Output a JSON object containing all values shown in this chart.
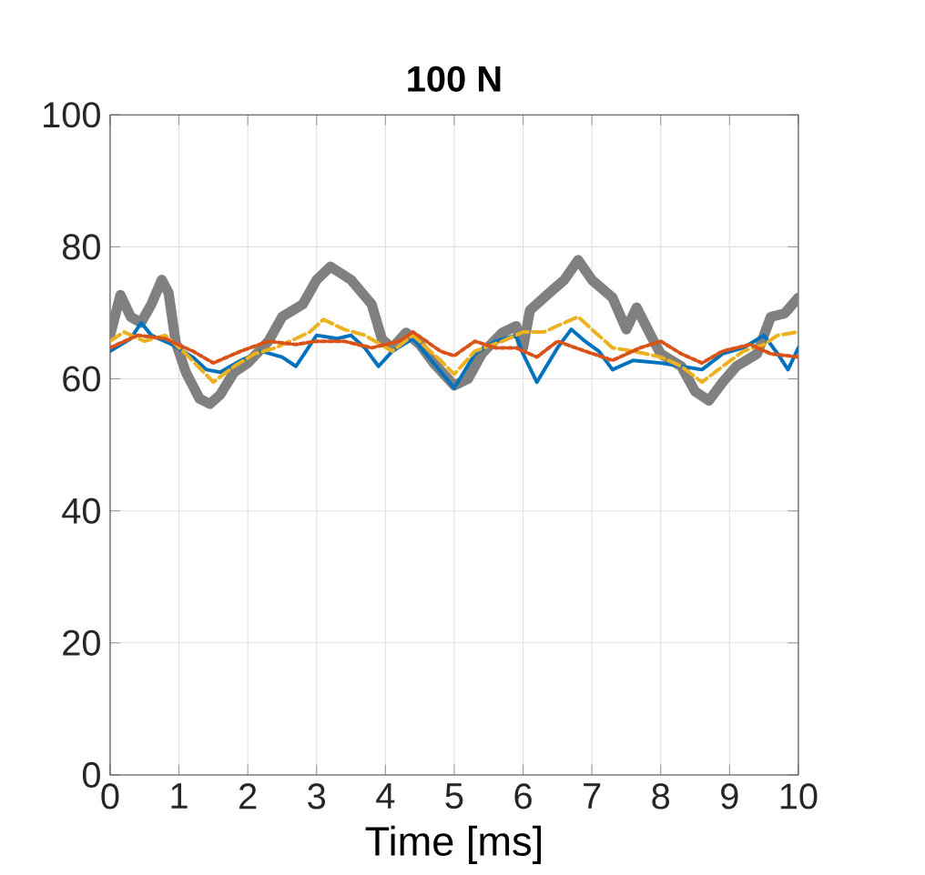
{
  "chart_data": {
    "type": "line",
    "title": "100 N",
    "xlabel": "Time [ms]",
    "xlim": [
      0,
      10
    ],
    "ylim": [
      0,
      100
    ],
    "xticks": [
      0,
      1,
      2,
      3,
      4,
      5,
      6,
      7,
      8,
      9,
      10
    ],
    "yticks": [
      0,
      20,
      40,
      60,
      80,
      100
    ],
    "grid": true,
    "series": [
      {
        "color": "#808080",
        "line_style": "solid",
        "x": [
          0,
          0.15,
          0.3,
          0.45,
          0.6,
          0.75,
          0.85,
          0.95,
          1.1,
          1.3,
          1.45,
          1.6,
          1.8,
          2.0,
          2.3,
          2.5,
          2.8,
          3.0,
          3.2,
          3.5,
          3.8,
          3.95,
          4.1,
          4.3,
          4.5,
          4.7,
          5.0,
          5.2,
          5.4,
          5.7,
          5.9,
          6.0,
          6.1,
          6.4,
          6.6,
          6.8,
          7.0,
          7.3,
          7.5,
          7.65,
          7.9,
          8.0,
          8.3,
          8.5,
          8.7,
          8.9,
          9.1,
          9.4,
          9.6,
          9.8,
          10
        ],
        "values": [
          66.6,
          72.7,
          69.4,
          68.5,
          71.3,
          75,
          73,
          65.7,
          61,
          57,
          56.2,
          57.6,
          61,
          62.4,
          65.7,
          69.4,
          71.3,
          75,
          77,
          75,
          71.3,
          66,
          64.7,
          67,
          65.2,
          62.4,
          59,
          60,
          63.8,
          67,
          68,
          64.7,
          70.4,
          73.2,
          75,
          78,
          75,
          72.3,
          67.5,
          70.8,
          65.7,
          63.8,
          61.9,
          58.1,
          56.7,
          59.5,
          61.9,
          63.8,
          69.4,
          69.9,
          72.3
        ]
      },
      {
        "color": "#0072bd",
        "line_style": "solid",
        "x": [
          0,
          0.3,
          0.45,
          0.6,
          0.9,
          1.2,
          1.4,
          1.6,
          1.9,
          2.2,
          2.5,
          2.7,
          3.0,
          3.3,
          3.5,
          3.7,
          3.9,
          4.1,
          4.4,
          4.7,
          5.0,
          5.3,
          5.6,
          5.9,
          6.0,
          6.2,
          6.5,
          6.7,
          6.9,
          7.1,
          7.3,
          7.6,
          8.0,
          8.3,
          8.6,
          8.9,
          9.2,
          9.5,
          9.7,
          9.85,
          10
        ],
        "values": [
          64.2,
          66.1,
          68.5,
          66.6,
          65.2,
          63.3,
          61.4,
          61,
          62.8,
          64.2,
          63.3,
          61.9,
          66.6,
          66.1,
          66.6,
          64.7,
          61.9,
          64.2,
          66.1,
          62.4,
          58.6,
          63.8,
          65.7,
          66.6,
          63.8,
          59.5,
          64.7,
          67.5,
          65.7,
          64.2,
          61.4,
          62.8,
          62.4,
          61.9,
          61.4,
          63.8,
          64.7,
          66.6,
          63.8,
          61.4,
          64.7
        ]
      },
      {
        "color": "#edb120",
        "line_style": "dashed",
        "x": [
          0,
          0.2,
          0.5,
          0.8,
          1.1,
          1.5,
          1.8,
          2.1,
          2.4,
          2.7,
          2.9,
          3.1,
          3.4,
          3.7,
          4.1,
          4.4,
          4.8,
          5.0,
          5.3,
          5.7,
          6.0,
          6.3,
          6.6,
          6.8,
          7.0,
          7.3,
          7.6,
          8.0,
          8.3,
          8.6,
          8.9,
          9.2,
          9.5,
          9.7,
          10
        ],
        "values": [
          65.7,
          67.1,
          65.7,
          66.6,
          63.8,
          59.5,
          61.9,
          63.8,
          64.7,
          66.1,
          67.1,
          69,
          67.5,
          66.6,
          64.2,
          66.6,
          62.8,
          60.7,
          64.2,
          65.7,
          67.1,
          67.1,
          68.5,
          69.4,
          67.5,
          64.7,
          64.2,
          63.3,
          61.9,
          59.5,
          61.9,
          64.2,
          65.2,
          66.6,
          67.1
        ]
      },
      {
        "color": "#d95319",
        "line_style": "dotted",
        "x": [
          0,
          0.4,
          0.8,
          1.2,
          1.5,
          1.9,
          2.3,
          2.7,
          3.0,
          3.4,
          3.8,
          4.2,
          4.4,
          4.8,
          5.0,
          5.3,
          5.6,
          5.9,
          6.2,
          6.5,
          6.9,
          7.3,
          7.7,
          8.0,
          8.3,
          8.6,
          8.9,
          9.3,
          9.6,
          10
        ],
        "values": [
          64.7,
          66.6,
          66.1,
          64.2,
          62.4,
          64.2,
          65.7,
          65.2,
          65.7,
          65.7,
          64.7,
          65.7,
          67.1,
          64.2,
          63.5,
          65.7,
          64.7,
          64.7,
          63.3,
          65.7,
          64.2,
          62.8,
          64.7,
          65.7,
          63.8,
          62.4,
          64.2,
          65.2,
          63.8,
          63.3
        ]
      }
    ]
  }
}
